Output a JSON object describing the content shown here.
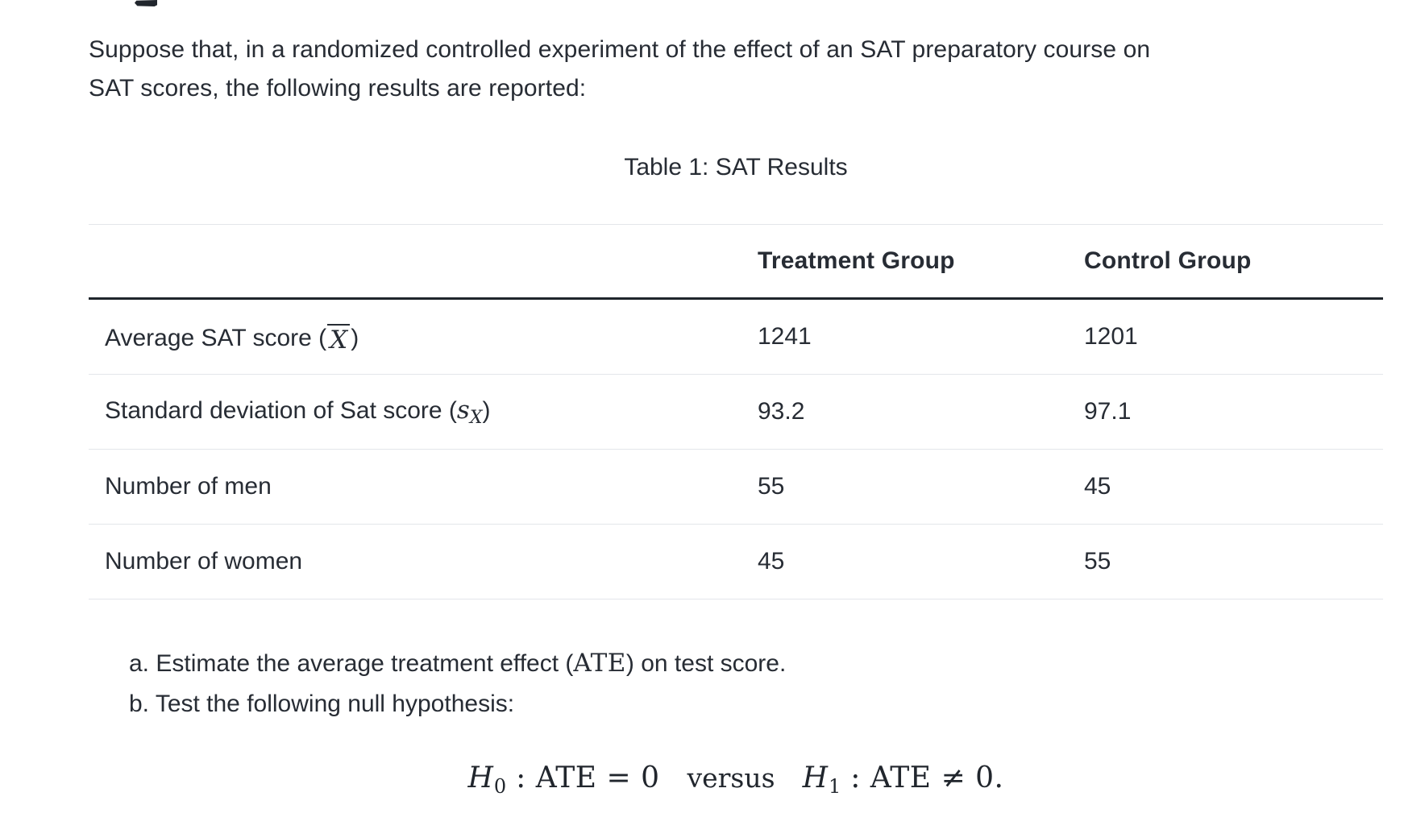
{
  "page": {
    "background": "#ffffff",
    "text_color": "#272c34",
    "light_rule_color": "#e3e6ea",
    "heavy_rule_color": "#1f252c"
  },
  "intro": {
    "line1": "Suppose that, in a randomized controlled experiment of the effect of an SAT preparatory course on",
    "line2": "SAT scores, the following results are reported:"
  },
  "table": {
    "caption": "Table 1: SAT Results",
    "columns": [
      "",
      "Treatment Group",
      "Control Group"
    ],
    "rows": [
      {
        "label_prefix": "Average SAT score (",
        "symbol": "X",
        "label_suffix": ")",
        "treatment": "1241",
        "control": "1201"
      },
      {
        "label_prefix": "Standard deviation of Sat score (",
        "symbol": "s",
        "symbol_sub": "X",
        "label_suffix": ")",
        "treatment": "93.2",
        "control": "97.1"
      },
      {
        "label_prefix": "Number of men",
        "treatment": "55",
        "control": "45"
      },
      {
        "label_prefix": "Number of women",
        "treatment": "45",
        "control": "55"
      }
    ]
  },
  "questions": {
    "a_marker": "a. ",
    "a_before": "Estimate the average treatment effect (",
    "a_math": "ATE",
    "a_after": ") on test score.",
    "b_marker": "b. ",
    "b_text": "Test the following null hypothesis:"
  },
  "formula": {
    "h0_var": "H",
    "h0_sub": "0",
    "h0_rel": " : ATE = 0",
    "versus": "versus",
    "h1_var": "H",
    "h1_sub": "1",
    "h1_rel": " : ATE ≠ 0."
  }
}
